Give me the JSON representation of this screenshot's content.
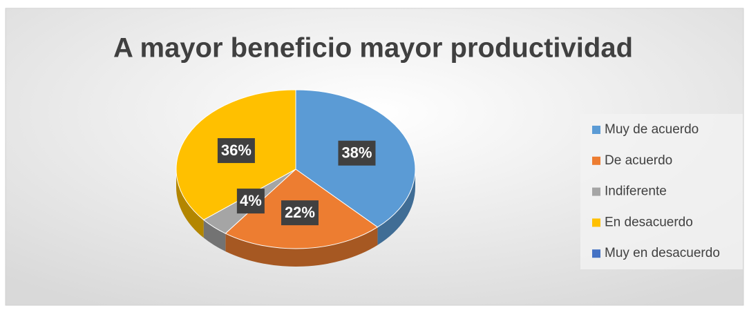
{
  "chart_data": {
    "type": "pie",
    "title": "A mayor beneficio mayor productividad",
    "categories": [
      "Muy de acuerdo",
      "De acuerdo",
      "Indiferente",
      "En desacuerdo",
      "Muy en desacuerdo"
    ],
    "values": [
      38,
      22,
      4,
      36,
      0
    ],
    "value_labels": [
      "38%",
      "22%",
      "4%",
      "36%",
      null
    ],
    "colors": [
      "#5b9bd5",
      "#ed7d31",
      "#a5a5a5",
      "#ffc000",
      "#4472c4"
    ],
    "legend": "right"
  }
}
